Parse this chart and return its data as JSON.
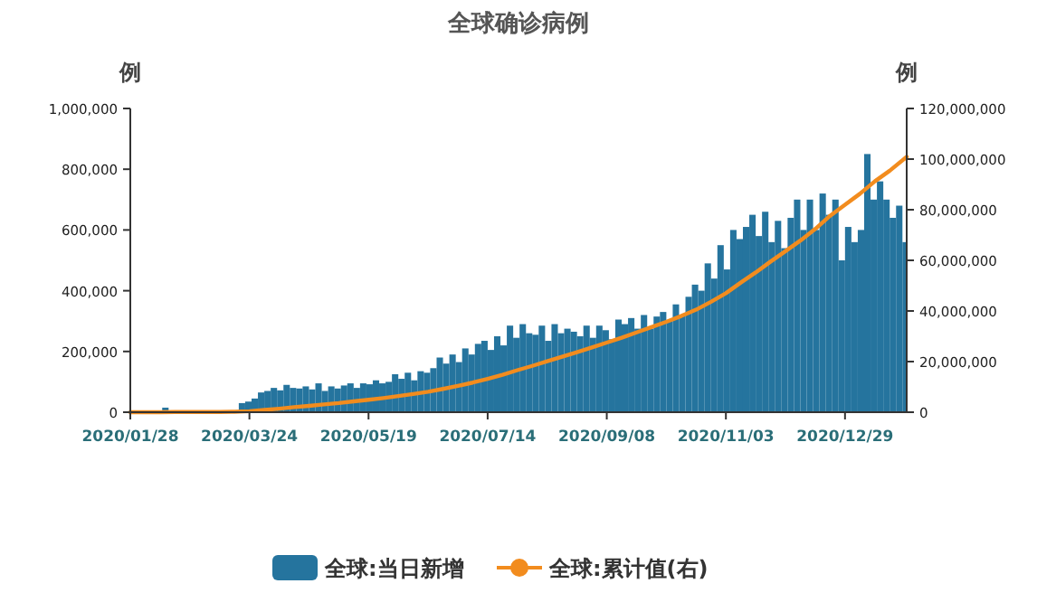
{
  "chart_data": {
    "type": "bar",
    "title": "全球确诊病例",
    "ylabel": "例",
    "y2label": "例",
    "legend": "bottom",
    "grid": false,
    "xlim": [
      "2020-01-28",
      "2021-01-27"
    ],
    "xticks": [
      {
        "value": "2020-01-28",
        "label": "2020/01/28"
      },
      {
        "value": "2020-03-24",
        "label": "2020/03/24"
      },
      {
        "value": "2020-05-19",
        "label": "2020/05/19"
      },
      {
        "value": "2020-07-14",
        "label": "2020/07/14"
      },
      {
        "value": "2020-09-08",
        "label": "2020/09/08"
      },
      {
        "value": "2020-11-03",
        "label": "2020/11/03"
      },
      {
        "value": "2020-12-29",
        "label": "2020/12/29"
      }
    ],
    "ylim": [
      0,
      1000000
    ],
    "yticks": [
      0,
      {
        "value": 200000,
        "label": "200,000"
      },
      {
        "value": 400000,
        "label": "400,000"
      },
      {
        "value": 600000,
        "label": "600,000"
      },
      {
        "value": 800000,
        "label": "800,000"
      },
      {
        "value": 1000000,
        "label": "1,000,000"
      }
    ],
    "y2lim": [
      0,
      120000000
    ],
    "y2ticks": [
      0,
      {
        "value": 20000000,
        "label": "20,000,000"
      },
      {
        "value": 40000000,
        "label": "40,000,000"
      },
      {
        "value": 60000000,
        "label": "60,000,000"
      },
      {
        "value": 80000000,
        "label": "80,000,000"
      },
      {
        "value": 100000000,
        "label": "100,000,000"
      },
      {
        "value": 120000000,
        "label": "120,000,000"
      }
    ],
    "series": [
      {
        "name": "全球:当日新增",
        "color": "#25749e",
        "x": [
          "2020-01-28",
          "2020-01-31",
          "2020-02-03",
          "2020-02-06",
          "2020-02-09",
          "2020-02-12",
          "2020-02-15",
          "2020-02-18",
          "2020-02-21",
          "2020-02-24",
          "2020-02-27",
          "2020-03-01",
          "2020-03-04",
          "2020-03-07",
          "2020-03-10",
          "2020-03-19",
          "2020-03-22",
          "2020-03-25",
          "2020-03-28",
          "2020-03-31",
          "2020-04-03",
          "2020-04-06",
          "2020-04-09",
          "2020-04-12",
          "2020-04-15",
          "2020-04-18",
          "2020-04-21",
          "2020-04-24",
          "2020-04-27",
          "2020-04-30",
          "2020-05-03",
          "2020-05-06",
          "2020-05-09",
          "2020-05-12",
          "2020-05-15",
          "2020-05-18",
          "2020-05-21",
          "2020-05-24",
          "2020-05-27",
          "2020-05-30",
          "2020-06-02",
          "2020-06-05",
          "2020-06-08",
          "2020-06-11",
          "2020-06-14",
          "2020-06-17",
          "2020-06-20",
          "2020-06-23",
          "2020-06-26",
          "2020-06-29",
          "2020-07-02",
          "2020-07-05",
          "2020-07-08",
          "2020-07-11",
          "2020-07-14",
          "2020-07-17",
          "2020-07-20",
          "2020-07-23",
          "2020-07-26",
          "2020-07-29",
          "2020-08-01",
          "2020-08-04",
          "2020-08-07",
          "2020-08-10",
          "2020-08-13",
          "2020-08-16",
          "2020-08-19",
          "2020-08-22",
          "2020-08-25",
          "2020-08-28",
          "2020-08-31",
          "2020-09-03",
          "2020-09-06",
          "2020-09-09",
          "2020-09-12",
          "2020-09-15",
          "2020-09-18",
          "2020-09-21",
          "2020-09-24",
          "2020-09-27",
          "2020-09-30",
          "2020-10-03",
          "2020-10-06",
          "2020-10-09",
          "2020-10-12",
          "2020-10-15",
          "2020-10-18",
          "2020-10-21",
          "2020-10-24",
          "2020-10-27",
          "2020-10-30",
          "2020-11-02",
          "2020-11-05",
          "2020-11-08",
          "2020-11-11",
          "2020-11-14",
          "2020-11-17",
          "2020-11-20",
          "2020-11-23",
          "2020-11-26",
          "2020-11-29",
          "2020-12-02",
          "2020-12-05",
          "2020-12-08",
          "2020-12-11",
          "2020-12-14",
          "2020-12-17",
          "2020-12-20",
          "2020-12-23",
          "2020-12-26",
          "2020-12-29",
          "2021-01-01",
          "2021-01-04",
          "2021-01-07",
          "2021-01-10",
          "2021-01-13",
          "2021-01-16",
          "2021-01-19",
          "2021-01-22",
          "2021-01-25"
        ],
        "values": [
          3000,
          2000,
          3000,
          4000,
          3000,
          15000,
          3000,
          2000,
          1000,
          1000,
          1000,
          2000,
          3000,
          4000,
          5000,
          30000,
          35000,
          45000,
          65000,
          70000,
          80000,
          72000,
          90000,
          80000,
          78000,
          85000,
          75000,
          95000,
          70000,
          85000,
          78000,
          88000,
          95000,
          80000,
          95000,
          92000,
          105000,
          95000,
          100000,
          125000,
          110000,
          130000,
          105000,
          135000,
          130000,
          145000,
          180000,
          160000,
          190000,
          165000,
          210000,
          190000,
          225000,
          235000,
          205000,
          250000,
          220000,
          285000,
          245000,
          290000,
          260000,
          255000,
          285000,
          235000,
          290000,
          260000,
          275000,
          265000,
          250000,
          285000,
          245000,
          285000,
          270000,
          240000,
          305000,
          290000,
          310000,
          275000,
          320000,
          275000,
          315000,
          330000,
          300000,
          355000,
          320000,
          380000,
          420000,
          400000,
          490000,
          440000,
          550000,
          470000,
          600000,
          570000,
          610000,
          650000,
          580000,
          660000,
          560000,
          630000,
          540000,
          640000,
          700000,
          600000,
          700000,
          600000,
          720000,
          650000,
          700000,
          500000,
          610000,
          560000,
          600000,
          850000,
          700000,
          760000,
          700000,
          640000,
          680000,
          560000
        ]
      },
      {
        "name": "全球:累计值(右)",
        "type": "line",
        "axis": "y2",
        "color": "#f28c1e",
        "x": [
          "2020-01-28",
          "2020-02-04",
          "2020-02-11",
          "2020-02-18",
          "2020-02-25",
          "2020-03-03",
          "2020-03-10",
          "2020-03-17",
          "2020-03-24",
          "2020-03-31",
          "2020-04-07",
          "2020-04-14",
          "2020-04-21",
          "2020-04-28",
          "2020-05-05",
          "2020-05-12",
          "2020-05-19",
          "2020-05-26",
          "2020-06-02",
          "2020-06-09",
          "2020-06-16",
          "2020-06-23",
          "2020-06-30",
          "2020-07-07",
          "2020-07-14",
          "2020-07-21",
          "2020-07-28",
          "2020-08-04",
          "2020-08-11",
          "2020-08-18",
          "2020-08-25",
          "2020-09-01",
          "2020-09-08",
          "2020-09-15",
          "2020-09-22",
          "2020-09-29",
          "2020-10-06",
          "2020-10-13",
          "2020-10-20",
          "2020-10-27",
          "2020-11-03",
          "2020-11-10",
          "2020-11-17",
          "2020-11-24",
          "2020-12-01",
          "2020-12-08",
          "2020-12-15",
          "2020-12-22",
          "2020-12-29",
          "2021-01-05",
          "2021-01-12",
          "2021-01-19",
          "2021-01-27"
        ],
        "values": [
          0,
          0,
          0,
          100000,
          100000,
          100000,
          100000,
          200000,
          400000,
          900000,
          1400000,
          2000000,
          2500000,
          3100000,
          3600000,
          4300000,
          4900000,
          5600000,
          6400000,
          7200000,
          8100000,
          9200000,
          10400000,
          11700000,
          13200000,
          14800000,
          16600000,
          18300000,
          20100000,
          21900000,
          23700000,
          25600000,
          27500000,
          29400000,
          31500000,
          33600000,
          35700000,
          38000000,
          40500000,
          43600000,
          47000000,
          51200000,
          55200000,
          59500000,
          63600000,
          67800000,
          72400000,
          77600000,
          82000000,
          86300000,
          91200000,
          95400000,
          100900000
        ]
      }
    ]
  }
}
